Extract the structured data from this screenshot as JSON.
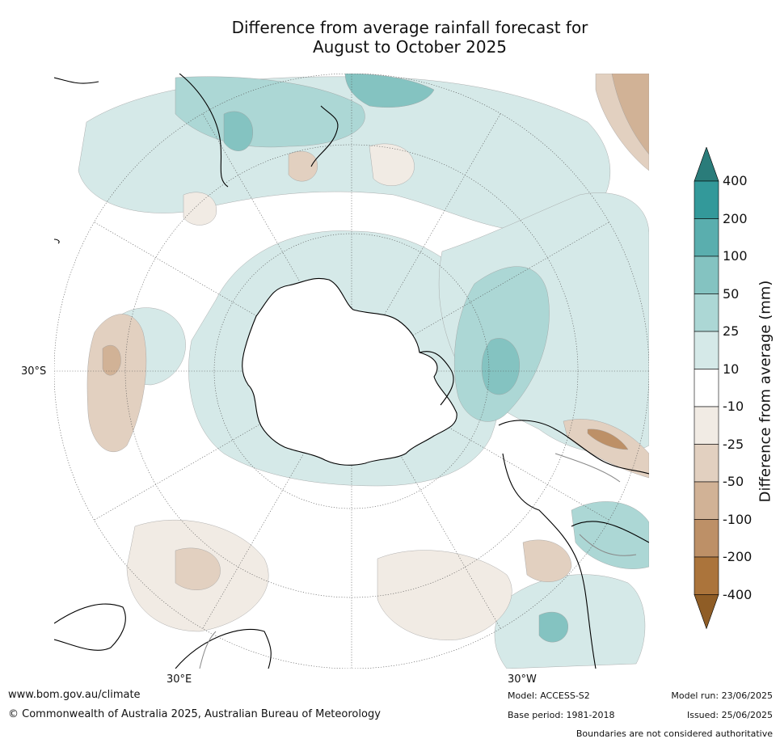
{
  "title_line1": "Difference from average rainfall forecast for",
  "title_line2": "August to October 2025",
  "lat_label_left": "30°S",
  "lon_label_bottom_left": "30°E",
  "lon_label_bottom_right": "30°W",
  "colorbar": {
    "title": "Difference from average (mm)",
    "ticks": [
      "400",
      "200",
      "100",
      "50",
      "25",
      "10",
      "-10",
      "-25",
      "-50",
      "-100",
      "-200",
      "-400"
    ],
    "colors": {
      "extend_high": "#2a7c7a",
      "200_400": "#33999a",
      "100_200": "#5aaeae",
      "50_100": "#84c3c1",
      "25_50": "#acd7d5",
      "10_25": "#d5e9e8",
      "-10_10": "#ffffff",
      "-25_-10": "#f1ebe4",
      "-50_-25": "#e2d0c0",
      "-100_-50": "#d1b296",
      "-200_-100": "#bd9067",
      "-400_-200": "#ab743b",
      "extend_low": "#8f5d26"
    }
  },
  "footer": {
    "website": "www.bom.gov.au/climate",
    "copyright": "© Commonwealth of Australia 2025, Australian Bureau of Meteorology",
    "model": "Model: ACCESS-S2",
    "base_period": "Base period: 1981-2018",
    "model_run": "Model run: 23/06/2025",
    "issued": "Issued: 25/06/2025",
    "disclaimer": "Boundaries are not considered authoritative"
  }
}
